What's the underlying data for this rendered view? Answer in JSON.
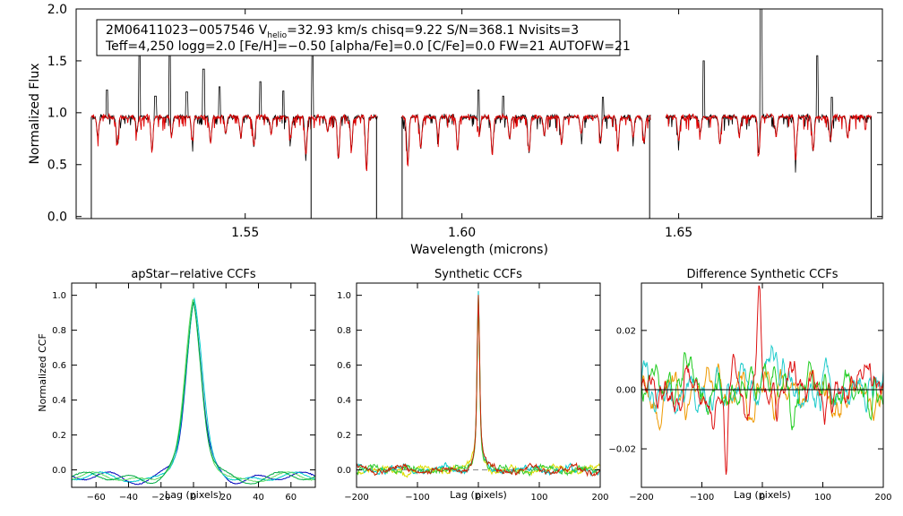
{
  "chart_data": [
    {
      "type": "line",
      "panel": "spectrum",
      "xlabel": "Wavelength (microns)",
      "ylabel": "Normalized Flux",
      "xlim": [
        1.511,
        1.697
      ],
      "ylim": [
        -0.02,
        2.0
      ],
      "xticks": [
        1.55,
        1.6,
        1.65
      ],
      "xtick_labels": [
        "1.55",
        "1.60",
        "1.65"
      ],
      "yticks": [
        0.0,
        0.5,
        1.0,
        1.5,
        2.0
      ],
      "ytick_labels": [
        "0.0",
        "0.5",
        "1.0",
        "1.5",
        "2.0"
      ],
      "info_box": {
        "line1_a": "2M06411023−0057546  V",
        "line1_sub": "helio",
        "line1_b": "=32.93 km/s  chisq=9.22  S/N=368.1  Nvisits=3",
        "line2": "Teff=4,250 logg=2.0 [Fe/H]=−0.50 [alpha/Fe]=0.0 [C/Fe]=0.0 FW=21 AUTOFW=21"
      },
      "chips": [
        [
          1.5145,
          1.5805
        ],
        [
          1.586,
          1.6435
        ],
        [
          1.647,
          1.6945
        ]
      ],
      "continuum": 0.96,
      "emission_spikes": [
        {
          "x": 1.5181,
          "y": 1.22
        },
        {
          "x": 1.5256,
          "y": 1.6
        },
        {
          "x": 1.5293,
          "y": 1.16
        },
        {
          "x": 1.5326,
          "y": 1.55
        },
        {
          "x": 1.5365,
          "y": 1.2
        },
        {
          "x": 1.5404,
          "y": 1.42
        },
        {
          "x": 1.5441,
          "y": 1.25
        },
        {
          "x": 1.5535,
          "y": 1.3
        },
        {
          "x": 1.5588,
          "y": 1.21
        },
        {
          "x": 1.5655,
          "y": 1.62
        },
        {
          "x": 1.6038,
          "y": 1.22
        },
        {
          "x": 1.6095,
          "y": 1.16
        },
        {
          "x": 1.6325,
          "y": 1.15
        },
        {
          "x": 1.6558,
          "y": 1.5
        },
        {
          "x": 1.669,
          "y": 2.0
        },
        {
          "x": 1.682,
          "y": 1.55
        },
        {
          "x": 1.6853,
          "y": 1.15
        }
      ],
      "dropouts": [
        {
          "x": 1.5652,
          "y": -0.02
        },
        {
          "x": 1.5145,
          "y": -0.02
        },
        {
          "x": 1.5803,
          "y": -0.02
        },
        {
          "x": 1.5862,
          "y": -0.02
        },
        {
          "x": 1.6433,
          "y": -0.02
        },
        {
          "x": 1.6944,
          "y": -0.02
        }
      ],
      "absorption_lines": [
        {
          "x": 1.516,
          "y": 0.78
        },
        {
          "x": 1.5205,
          "y": 0.7
        },
        {
          "x": 1.525,
          "y": 0.82
        },
        {
          "x": 1.5285,
          "y": 0.63
        },
        {
          "x": 1.533,
          "y": 0.78
        },
        {
          "x": 1.5378,
          "y": 0.75
        },
        {
          "x": 1.542,
          "y": 0.72
        },
        {
          "x": 1.5455,
          "y": 0.8
        },
        {
          "x": 1.549,
          "y": 0.76
        },
        {
          "x": 1.552,
          "y": 0.68
        },
        {
          "x": 1.556,
          "y": 0.8
        },
        {
          "x": 1.5605,
          "y": 0.75
        },
        {
          "x": 1.564,
          "y": 0.6
        },
        {
          "x": 1.569,
          "y": 0.82
        },
        {
          "x": 1.5715,
          "y": 0.55
        },
        {
          "x": 1.5745,
          "y": 0.66
        },
        {
          "x": 1.578,
          "y": 0.45
        },
        {
          "x": 1.5875,
          "y": 0.5
        },
        {
          "x": 1.5905,
          "y": 0.65
        },
        {
          "x": 1.5945,
          "y": 0.78
        },
        {
          "x": 1.599,
          "y": 0.64
        },
        {
          "x": 1.604,
          "y": 0.78
        },
        {
          "x": 1.607,
          "y": 0.6
        },
        {
          "x": 1.611,
          "y": 0.75
        },
        {
          "x": 1.6155,
          "y": 0.62
        },
        {
          "x": 1.619,
          "y": 0.78
        },
        {
          "x": 1.623,
          "y": 0.7
        },
        {
          "x": 1.6275,
          "y": 0.8
        },
        {
          "x": 1.632,
          "y": 0.72
        },
        {
          "x": 1.636,
          "y": 0.66
        },
        {
          "x": 1.6395,
          "y": 0.76
        },
        {
          "x": 1.642,
          "y": 0.7
        },
        {
          "x": 1.65,
          "y": 0.72
        },
        {
          "x": 1.655,
          "y": 0.8
        },
        {
          "x": 1.6595,
          "y": 0.7
        },
        {
          "x": 1.664,
          "y": 0.78
        },
        {
          "x": 1.6685,
          "y": 0.6
        },
        {
          "x": 1.6725,
          "y": 0.78
        },
        {
          "x": 1.677,
          "y": 0.55
        },
        {
          "x": 1.681,
          "y": 0.62
        },
        {
          "x": 1.685,
          "y": 0.72
        },
        {
          "x": 1.689,
          "y": 0.76
        }
      ],
      "series": [
        {
          "color": "#000000"
        },
        {
          "color": "#dd0000"
        }
      ]
    },
    {
      "type": "line",
      "panel": "apstar-ccf",
      "title": "apStar−relative CCFs",
      "xlabel": "Lag (pixels)",
      "ylabel": "Normalized CCF",
      "xlim": [
        -75,
        75
      ],
      "ylim": [
        -0.1,
        1.07
      ],
      "xticks": [
        -60,
        -40,
        -20,
        0,
        20,
        40,
        60
      ],
      "xtick_labels": [
        "−60",
        "−40",
        "−20",
        "0",
        "20",
        "40",
        "60"
      ],
      "yticks": [
        0.0,
        0.2,
        0.4,
        0.6,
        0.8,
        1.0
      ],
      "ytick_labels": [
        "0.0",
        "0.2",
        "0.4",
        "0.6",
        "0.8",
        "1.0"
      ],
      "peak": 1.0,
      "peak_lag": 0,
      "series": [
        {
          "color": "#0000bb",
          "shift": 0.0,
          "width": 4.5
        },
        {
          "color": "#00cccc",
          "shift": 0.4,
          "width": 5.0
        },
        {
          "color": "#66dd66",
          "shift": -0.3,
          "width": 4.8
        },
        {
          "color": "#00aa44",
          "shift": 0.1,
          "width": 4.6
        }
      ]
    },
    {
      "type": "line",
      "panel": "synthetic-ccf",
      "title": "Synthetic CCFs",
      "xlabel": "Lag (pixels)",
      "xlim": [
        -200,
        200
      ],
      "ylim": [
        -0.1,
        1.07
      ],
      "xticks": [
        -200,
        -100,
        0,
        100,
        200
      ],
      "xtick_labels": [
        "−200",
        "−100",
        "0",
        "100",
        "200"
      ],
      "yticks": [
        0.0,
        0.2,
        0.4,
        0.6,
        0.8,
        1.0
      ],
      "ytick_labels": [
        "0.0",
        "0.2",
        "0.4",
        "0.6",
        "0.8",
        "1.0"
      ],
      "peak": 1.0,
      "peak_lag": 0,
      "baseline": 0.0,
      "baseline_color": "#888888",
      "series": [
        {
          "color": "#dddd00",
          "seed": 3
        },
        {
          "color": "#00cccc",
          "seed": 7
        },
        {
          "color": "#33cc33",
          "seed": 11
        },
        {
          "color": "#cc2200",
          "seed": 19
        }
      ]
    },
    {
      "type": "line",
      "panel": "difference-ccf",
      "title": "Difference Synthetic CCFs",
      "xlabel": "Lag (pixels)",
      "xlim": [
        -200,
        200
      ],
      "ylim": [
        -0.033,
        0.036
      ],
      "xticks": [
        -200,
        -100,
        0,
        100,
        200
      ],
      "xtick_labels": [
        "−200",
        "−100",
        "0",
        "100",
        "200"
      ],
      "yticks": [
        -0.02,
        0.0,
        0.02
      ],
      "ytick_labels": [
        "−0.02",
        "0.00",
        "0.02"
      ],
      "zero_line": 0.0,
      "series": [
        {
          "color": "#ee9900",
          "seed": 5
        },
        {
          "color": "#22cccc",
          "seed": 13
        },
        {
          "color": "#22cc22",
          "seed": 23
        },
        {
          "color": "#dd1111",
          "seed": 31
        }
      ]
    }
  ]
}
